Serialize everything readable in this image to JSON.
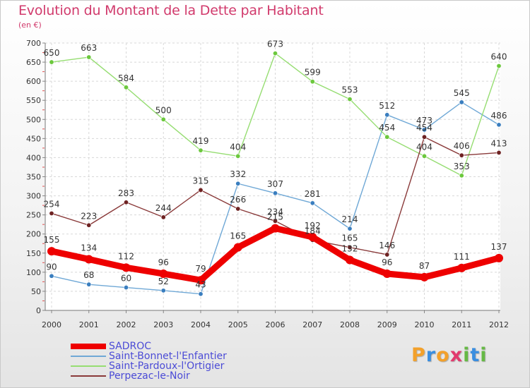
{
  "title": "Evolution du Montant de la Dette par Habitant",
  "unit": "(en €)",
  "logo": {
    "letters": [
      {
        "ch": "P",
        "color": "#f3a12b"
      },
      {
        "ch": "r",
        "color": "#3a8ee0"
      },
      {
        "ch": "o",
        "color": "#f3a12b"
      },
      {
        "ch": "x",
        "color": "#e23a6e"
      },
      {
        "ch": "i",
        "color": "#66b945"
      },
      {
        "ch": "t",
        "color": "#3a8ee0"
      },
      {
        "ch": "i",
        "color": "#66b945"
      }
    ]
  },
  "chart_data": {
    "type": "line",
    "title": "Evolution du Montant de la Dette par Habitant",
    "ylabel": "(en €)",
    "xlabel": "",
    "x": [
      "2000",
      "2001",
      "2002",
      "2003",
      "2004",
      "2005",
      "2006",
      "2007",
      "2008",
      "2009",
      "2010",
      "2011",
      "2012"
    ],
    "ylim": [
      0,
      700
    ],
    "yticks": [
      "0",
      "50",
      "100",
      "150",
      "200",
      "250",
      "300",
      "350",
      "400",
      "450",
      "500",
      "550",
      "600",
      "650",
      "700"
    ],
    "grid": true,
    "legend": "bottom-left",
    "series": [
      {
        "name": "SADROC",
        "color": "#ee0000",
        "width": 9,
        "marker": 6,
        "values": [
          155,
          134,
          112,
          96,
          79,
          165,
          215,
          192,
          132,
          96,
          87,
          111,
          137
        ],
        "labels": [
          "155",
          "134",
          "112",
          "96",
          "79",
          "165",
          "215",
          "192",
          "132",
          "96",
          "87",
          "111",
          "137"
        ]
      },
      {
        "name": "Saint-Bonnet-l'Enfantier",
        "color": "#6fa8d6",
        "pointColor": "#3a7ebf",
        "width": 1.4,
        "marker": 3.2,
        "values": [
          90,
          68,
          60,
          52,
          43,
          332,
          307,
          281,
          214,
          512,
          473,
          545,
          486
        ],
        "labels": [
          "90",
          "68",
          "60",
          "52",
          "43",
          "332",
          "307",
          "281",
          "214",
          "512",
          "473",
          "545",
          "486"
        ]
      },
      {
        "name": "Saint-Pardoux-l'Ortigier",
        "color": "#96dd72",
        "pointColor": "#6cc83d",
        "width": 1.4,
        "marker": 3.2,
        "values": [
          650,
          663,
          584,
          500,
          419,
          404,
          673,
          599,
          553,
          454,
          404,
          353,
          640
        ],
        "labels": [
          "650",
          "663",
          "584",
          "500",
          "419",
          "404",
          "673",
          "599",
          "553",
          "454",
          "404",
          "353",
          "640"
        ]
      },
      {
        "name": "Perpezac-le-Noir",
        "color": "#8a3a3a",
        "pointColor": "#6e2222",
        "width": 1.4,
        "marker": 3.2,
        "values": [
          254,
          223,
          283,
          244,
          315,
          266,
          234,
          184,
          165,
          146,
          454,
          406,
          413
        ],
        "labels": [
          "254",
          "223",
          "283",
          "244",
          "315",
          "266",
          "234",
          "184",
          "165",
          "146",
          "454",
          "406",
          "413"
        ]
      }
    ]
  }
}
